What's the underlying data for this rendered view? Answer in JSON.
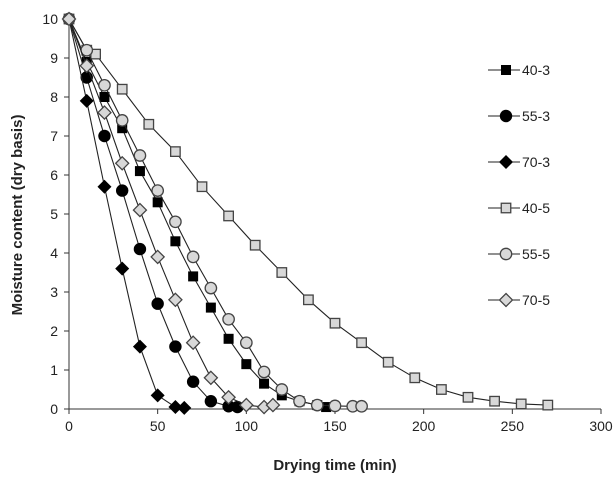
{
  "chart_data": {
    "type": "line",
    "title": "",
    "xlabel": "Drying time (min)",
    "ylabel": "Moisture content (dry basis)",
    "xlim": [
      0,
      300
    ],
    "ylim": [
      0,
      10
    ],
    "xticks": [
      "0",
      "50",
      "100",
      "150",
      "200",
      "250",
      "300"
    ],
    "yticks": [
      "0",
      "1",
      "2",
      "3",
      "4",
      "5",
      "6",
      "7",
      "8",
      "9",
      "10"
    ],
    "grid": false,
    "legend_position": "right",
    "series": [
      {
        "name": "40-3",
        "marker": "filled-square",
        "x": [
          0,
          10,
          20,
          30,
          40,
          50,
          60,
          70,
          80,
          90,
          100,
          110,
          120,
          130,
          140,
          145
        ],
        "y": [
          10,
          8.9,
          8.0,
          7.2,
          6.1,
          5.3,
          4.3,
          3.4,
          2.6,
          1.8,
          1.15,
          0.65,
          0.35,
          0.2,
          0.1,
          0.05
        ]
      },
      {
        "name": "55-3",
        "marker": "filled-circle",
        "x": [
          0,
          10,
          20,
          30,
          40,
          50,
          60,
          70,
          80,
          90,
          95
        ],
        "y": [
          10,
          8.5,
          7.0,
          5.6,
          4.1,
          2.7,
          1.6,
          0.7,
          0.2,
          0.07,
          0.05
        ]
      },
      {
        "name": "70-3",
        "marker": "filled-diamond",
        "x": [
          0,
          10,
          20,
          30,
          40,
          50,
          60,
          65
        ],
        "y": [
          10,
          7.9,
          5.7,
          3.6,
          1.6,
          0.35,
          0.05,
          0.03
        ]
      },
      {
        "name": "40-5",
        "marker": "open-square",
        "x": [
          0,
          10,
          15,
          30,
          45,
          60,
          75,
          90,
          105,
          120,
          135,
          150,
          165,
          180,
          195,
          210,
          225,
          240,
          255,
          270
        ],
        "y": [
          10,
          9.2,
          9.1,
          8.2,
          7.3,
          6.6,
          5.7,
          4.95,
          4.2,
          3.5,
          2.8,
          2.2,
          1.7,
          1.2,
          0.8,
          0.5,
          0.3,
          0.2,
          0.13,
          0.1
        ]
      },
      {
        "name": "55-5",
        "marker": "open-circle",
        "x": [
          0,
          10,
          20,
          30,
          40,
          50,
          60,
          70,
          80,
          90,
          100,
          110,
          120,
          130,
          140,
          150,
          160,
          165
        ],
        "y": [
          10,
          9.2,
          8.3,
          7.4,
          6.5,
          5.6,
          4.8,
          3.9,
          3.1,
          2.3,
          1.7,
          0.95,
          0.5,
          0.2,
          0.1,
          0.08,
          0.07,
          0.07
        ]
      },
      {
        "name": "70-5",
        "marker": "open-diamond",
        "x": [
          0,
          10,
          20,
          30,
          40,
          50,
          60,
          70,
          80,
          90,
          100,
          110,
          115
        ],
        "y": [
          10,
          8.8,
          7.6,
          6.3,
          5.1,
          3.9,
          2.8,
          1.7,
          0.8,
          0.3,
          0.1,
          0.05,
          0.1
        ]
      }
    ]
  }
}
